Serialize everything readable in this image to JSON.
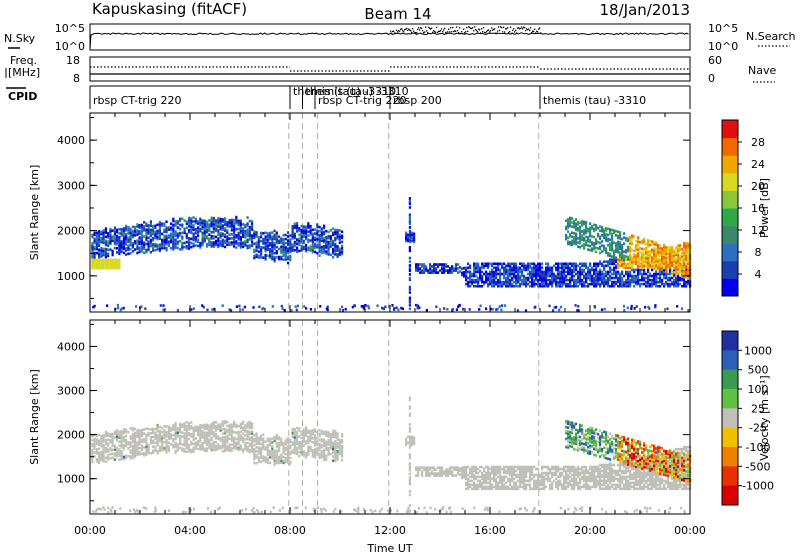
{
  "header": {
    "station": "Kapuskasing (fitACF)",
    "beam": "Beam 14",
    "date": "18/Jan/2013"
  },
  "top_panels": {
    "nsky_label": "N.Sky",
    "nsky_ticks": [
      "10^5",
      "10^0"
    ],
    "nsearch_label": "N.Search",
    "nsearch_ticks": [
      "10^5",
      "10^0"
    ],
    "freq_label_line1": "Freq.",
    "freq_label_line2": "[MHz]",
    "freq_ticks": [
      "18",
      "8"
    ],
    "nave_label": "Nave",
    "nave_ticks": [
      "60",
      "0"
    ],
    "cpid_label": "CPID",
    "cpid_segments": [
      {
        "label": "rbsp CT-trig 220",
        "start": 0,
        "end": 8
      },
      {
        "label": "themis (tau) -3310",
        "start": 8,
        "end": 8.5
      },
      {
        "label": "themis (tau) -3310",
        "start": 8.5,
        "end": 9
      },
      {
        "label": "rbsp CT-trig 220",
        "start": 9,
        "end": 12
      },
      {
        "label": "rbsp 200",
        "start": 12,
        "end": 18
      },
      {
        "label": "themis (tau) -3310",
        "start": 18,
        "end": 24
      }
    ]
  },
  "chart_data": [
    {
      "type": "heatmap",
      "quantity": "power",
      "ylabel": "Slant Range [km]",
      "ylim": [
        200,
        4600
      ],
      "yticks": [
        1000,
        2000,
        3000,
        4000
      ],
      "xlim": [
        0,
        24
      ],
      "colorbar": {
        "label": "Power [dB]",
        "range": [
          0,
          32
        ],
        "ticks": [
          "28",
          "24",
          "20",
          "16",
          "12",
          "8",
          "4"
        ],
        "colors": [
          "#0000ee",
          "#1a3fb0",
          "#2a6fc0",
          "#3a8a6a",
          "#2fa84a",
          "#88c83a",
          "#d8d820",
          "#f0a800",
          "#f06800",
          "#e01010"
        ]
      }
    },
    {
      "type": "heatmap",
      "quantity": "velocity",
      "ylabel": "Slant Range [km]",
      "ylim": [
        200,
        4600
      ],
      "yticks": [
        1000,
        2000,
        3000,
        4000
      ],
      "xlim": [
        0,
        24
      ],
      "xlabel": "Time UT",
      "xticks": [
        "00:00",
        "04:00",
        "08:00",
        "12:00",
        "16:00",
        "20:00",
        "00:00"
      ],
      "colorbar": {
        "label": "Velocity [m s⁻¹]",
        "ticks": [
          "1000",
          "500",
          "100",
          "25",
          "-25",
          "-100",
          "-500",
          "-1000"
        ],
        "colors": [
          "#2030a0",
          "#2a60b8",
          "#3a9a50",
          "#60c040",
          "#c0c0b8",
          "#f0c000",
          "#f08000",
          "#e83000",
          "#d80000"
        ]
      }
    }
  ],
  "colors": {
    "ground_scatter": "#c0c0b8",
    "dashed_lines": "#b0b0b0"
  }
}
